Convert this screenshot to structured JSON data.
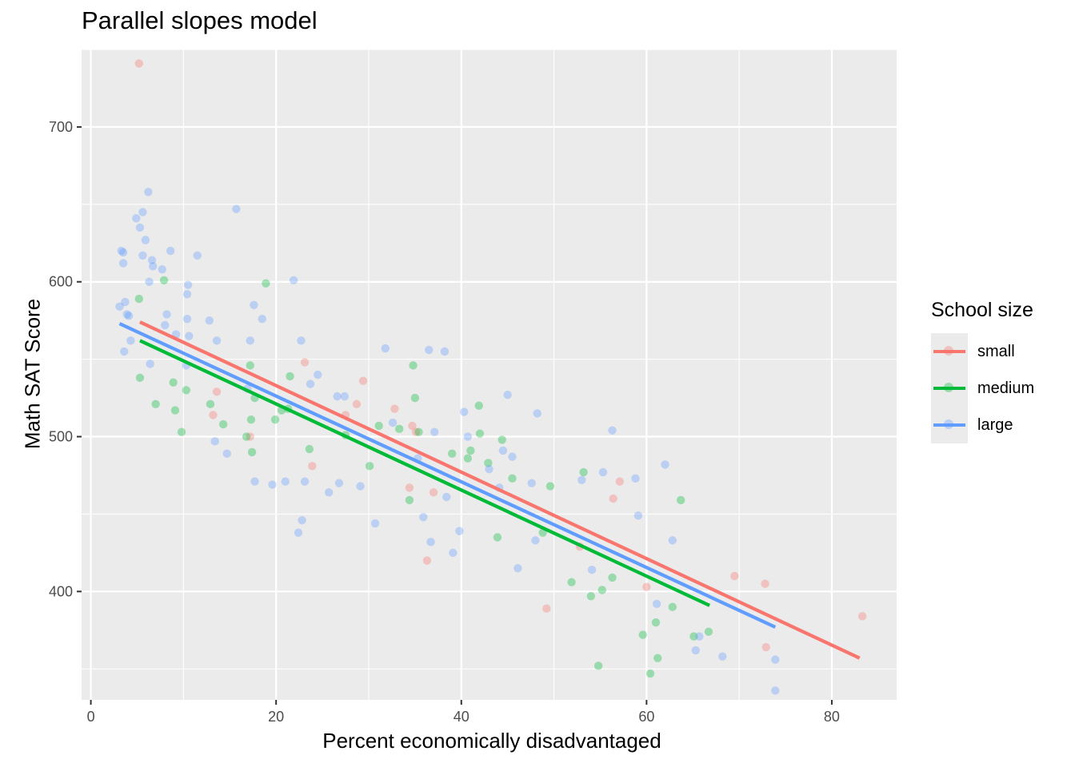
{
  "chart_data": {
    "type": "scatter",
    "title": "Parallel slopes model",
    "xlabel": "Percent economically disadvantaged",
    "ylabel": "Math SAT Score",
    "xlim": [
      -1,
      87
    ],
    "ylim": [
      330,
      750
    ],
    "x_ticks": [
      0,
      20,
      40,
      60,
      80
    ],
    "y_ticks": [
      400,
      500,
      600,
      700
    ],
    "grid": true,
    "legend": {
      "title": "School size",
      "placement": "right",
      "entries": [
        "small",
        "medium",
        "large"
      ]
    },
    "series": [
      {
        "name": "small",
        "color": "#F8766D",
        "points": [
          [
            5.2,
            741
          ],
          [
            13.2,
            514
          ],
          [
            13.6,
            529
          ],
          [
            17.2,
            500
          ],
          [
            23.1,
            548
          ],
          [
            23.9,
            481
          ],
          [
            27.5,
            514
          ],
          [
            28.7,
            521
          ],
          [
            29.4,
            536
          ],
          [
            32.8,
            518
          ],
          [
            34.4,
            467
          ],
          [
            34.7,
            507
          ],
          [
            35.1,
            503
          ],
          [
            36.3,
            420
          ],
          [
            37.0,
            464
          ],
          [
            49.2,
            389
          ],
          [
            52.8,
            429
          ],
          [
            56.4,
            460
          ],
          [
            57.1,
            471
          ],
          [
            60.0,
            403
          ],
          [
            69.5,
            410
          ],
          [
            72.8,
            405
          ],
          [
            72.9,
            364
          ],
          [
            83.3,
            384
          ]
        ],
        "fit": {
          "x": [
            5.3,
            83.0
          ],
          "y": [
            574,
            357
          ]
        }
      },
      {
        "name": "medium",
        "color": "#00BA38",
        "points": [
          [
            5.2,
            589
          ],
          [
            5.3,
            538
          ],
          [
            7.0,
            521
          ],
          [
            7.9,
            601
          ],
          [
            8.9,
            535
          ],
          [
            9.1,
            517
          ],
          [
            9.8,
            503
          ],
          [
            10.3,
            530
          ],
          [
            12.9,
            521
          ],
          [
            14.3,
            508
          ],
          [
            16.8,
            500
          ],
          [
            17.2,
            546
          ],
          [
            17.3,
            511
          ],
          [
            17.4,
            490
          ],
          [
            17.7,
            525
          ],
          [
            18.9,
            599
          ],
          [
            19.9,
            511
          ],
          [
            20.6,
            517
          ],
          [
            21.3,
            518
          ],
          [
            21.5,
            539
          ],
          [
            23.6,
            492
          ],
          [
            27.5,
            501
          ],
          [
            30.1,
            481
          ],
          [
            31.1,
            507
          ],
          [
            33.3,
            505
          ],
          [
            34.4,
            459
          ],
          [
            34.8,
            546
          ],
          [
            35.0,
            525
          ],
          [
            35.4,
            503
          ],
          [
            39.0,
            489
          ],
          [
            40.7,
            486
          ],
          [
            41.0,
            491
          ],
          [
            41.9,
            520
          ],
          [
            42.0,
            502
          ],
          [
            42.9,
            483
          ],
          [
            43.9,
            435
          ],
          [
            44.4,
            498
          ],
          [
            45.5,
            473
          ],
          [
            48.8,
            438
          ],
          [
            49.6,
            468
          ],
          [
            51.9,
            406
          ],
          [
            53.2,
            477
          ],
          [
            54.0,
            397
          ],
          [
            54.8,
            352
          ],
          [
            55.2,
            401
          ],
          [
            56.3,
            409
          ],
          [
            59.6,
            372
          ],
          [
            60.4,
            347
          ],
          [
            61.0,
            380
          ],
          [
            61.2,
            357
          ],
          [
            62.8,
            390
          ],
          [
            63.7,
            459
          ],
          [
            65.1,
            371
          ],
          [
            66.7,
            374
          ]
        ],
        "fit": {
          "x": [
            5.3,
            66.8
          ],
          "y": [
            562,
            391
          ]
        }
      },
      {
        "name": "large",
        "color": "#619CFF",
        "points": [
          [
            3.1,
            584
          ],
          [
            3.3,
            620
          ],
          [
            3.5,
            619
          ],
          [
            3.5,
            612
          ],
          [
            3.6,
            555
          ],
          [
            3.7,
            587
          ],
          [
            3.9,
            579
          ],
          [
            4.1,
            578
          ],
          [
            4.3,
            562
          ],
          [
            4.9,
            641
          ],
          [
            5.3,
            635
          ],
          [
            5.6,
            645
          ],
          [
            5.6,
            617
          ],
          [
            5.9,
            627
          ],
          [
            6.2,
            658
          ],
          [
            6.3,
            600
          ],
          [
            6.4,
            547
          ],
          [
            6.6,
            614
          ],
          [
            6.7,
            610
          ],
          [
            7.7,
            608
          ],
          [
            8.0,
            572
          ],
          [
            8.2,
            579
          ],
          [
            8.6,
            620
          ],
          [
            9.2,
            566
          ],
          [
            10.4,
            592
          ],
          [
            10.5,
            598
          ],
          [
            10.4,
            576
          ],
          [
            10.6,
            565
          ],
          [
            10.3,
            546
          ],
          [
            11.5,
            617
          ],
          [
            12.8,
            575
          ],
          [
            13.4,
            497
          ],
          [
            13.6,
            562
          ],
          [
            14.7,
            489
          ],
          [
            15.7,
            647
          ],
          [
            16.9,
            531
          ],
          [
            17.2,
            562
          ],
          [
            17.6,
            585
          ],
          [
            17.7,
            471
          ],
          [
            18.5,
            576
          ],
          [
            19.6,
            469
          ],
          [
            21.0,
            471
          ],
          [
            21.9,
            601
          ],
          [
            22.4,
            438
          ],
          [
            22.7,
            562
          ],
          [
            22.8,
            446
          ],
          [
            23.1,
            471
          ],
          [
            23.7,
            534
          ],
          [
            24.5,
            540
          ],
          [
            25.7,
            464
          ],
          [
            26.6,
            526
          ],
          [
            26.8,
            470
          ],
          [
            27.4,
            526
          ],
          [
            29.1,
            468
          ],
          [
            30.7,
            444
          ],
          [
            31.8,
            557
          ],
          [
            32.6,
            509
          ],
          [
            35.3,
            486
          ],
          [
            35.9,
            448
          ],
          [
            36.5,
            556
          ],
          [
            36.7,
            432
          ],
          [
            37.1,
            503
          ],
          [
            38.2,
            555
          ],
          [
            38.4,
            461
          ],
          [
            39.1,
            425
          ],
          [
            39.8,
            439
          ],
          [
            40.3,
            516
          ],
          [
            40.7,
            500
          ],
          [
            43.0,
            479
          ],
          [
            44.1,
            467
          ],
          [
            44.5,
            491
          ],
          [
            45.0,
            527
          ],
          [
            45.5,
            487
          ],
          [
            46.1,
            415
          ],
          [
            47.6,
            470
          ],
          [
            48.0,
            433
          ],
          [
            48.2,
            515
          ],
          [
            53.0,
            472
          ],
          [
            54.1,
            414
          ],
          [
            55.3,
            477
          ],
          [
            56.3,
            504
          ],
          [
            58.8,
            473
          ],
          [
            59.1,
            449
          ],
          [
            61.1,
            392
          ],
          [
            62.0,
            482
          ],
          [
            62.8,
            433
          ],
          [
            65.3,
            362
          ],
          [
            65.7,
            371
          ],
          [
            68.2,
            358
          ],
          [
            73.9,
            356
          ],
          [
            73.9,
            336
          ]
        ],
        "fit": {
          "x": [
            3.1,
            73.9
          ],
          "y": [
            573,
            377
          ]
        }
      }
    ]
  }
}
